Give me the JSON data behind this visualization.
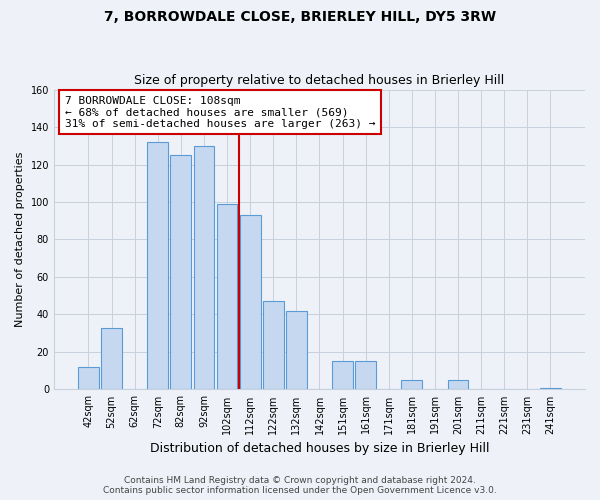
{
  "title": "7, BORROWDALE CLOSE, BRIERLEY HILL, DY5 3RW",
  "subtitle": "Size of property relative to detached houses in Brierley Hill",
  "xlabel": "Distribution of detached houses by size in Brierley Hill",
  "ylabel": "Number of detached properties",
  "bar_labels": [
    "42sqm",
    "52sqm",
    "62sqm",
    "72sqm",
    "82sqm",
    "92sqm",
    "102sqm",
    "112sqm",
    "122sqm",
    "132sqm",
    "142sqm",
    "151sqm",
    "161sqm",
    "171sqm",
    "181sqm",
    "191sqm",
    "201sqm",
    "211sqm",
    "221sqm",
    "231sqm",
    "241sqm"
  ],
  "bar_heights": [
    12,
    33,
    0,
    132,
    125,
    130,
    99,
    93,
    47,
    42,
    0,
    15,
    15,
    0,
    5,
    0,
    5,
    0,
    0,
    0,
    1
  ],
  "bar_color": "#c5d8f0",
  "bar_edge_color": "#5b9bd5",
  "vline_color": "#cc0000",
  "vline_x": 6.5,
  "annotation_line1": "7 BORROWDALE CLOSE: 108sqm",
  "annotation_line2": "← 68% of detached houses are smaller (569)",
  "annotation_line3": "31% of semi-detached houses are larger (263) →",
  "annotation_box_color": "#ffffff",
  "annotation_box_edge_color": "#cc0000",
  "ylim": [
    0,
    160
  ],
  "yticks": [
    0,
    20,
    40,
    60,
    80,
    100,
    120,
    140,
    160
  ],
  "footer_line1": "Contains HM Land Registry data © Crown copyright and database right 2024.",
  "footer_line2": "Contains public sector information licensed under the Open Government Licence v3.0.",
  "bg_color": "#eef2f8",
  "plot_bg_color": "#eef2f8",
  "grid_color": "#c8d0de",
  "title_fontsize": 10,
  "subtitle_fontsize": 9,
  "xlabel_fontsize": 9,
  "ylabel_fontsize": 8,
  "tick_fontsize": 7,
  "annotation_fontsize": 8,
  "footer_fontsize": 6.5
}
